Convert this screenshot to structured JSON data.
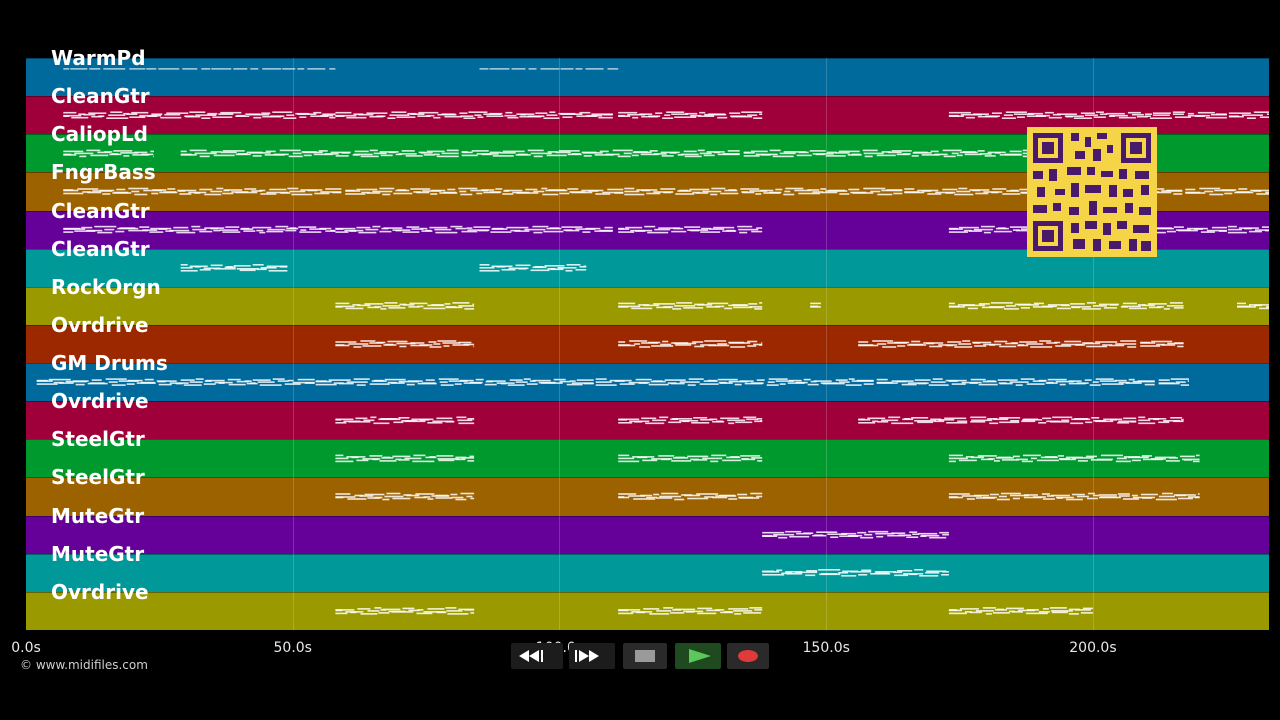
{
  "timeline": {
    "tracks": [
      {
        "name": "WarmPd",
        "color": "#006a9c"
      },
      {
        "name": "CleanGtr",
        "color": "#a0003a"
      },
      {
        "name": "CaliopLd",
        "color": "#00992e"
      },
      {
        "name": "FngrBass",
        "color": "#9c6200"
      },
      {
        "name": "CleanGtr",
        "color": "#650098"
      },
      {
        "name": "CleanGtr",
        "color": "#009898"
      },
      {
        "name": "RockOrgn",
        "color": "#9a9a00"
      },
      {
        "name": "Ovrdrive",
        "color": "#9c2800"
      },
      {
        "name": "GM Drums",
        "color": "#006a9c"
      },
      {
        "name": "Ovrdrive",
        "color": "#a0003a"
      },
      {
        "name": "SteelGtr",
        "color": "#00992e"
      },
      {
        "name": "SteelGtr",
        "color": "#9c6200"
      },
      {
        "name": "MuteGtr",
        "color": "#650098"
      },
      {
        "name": "MuteGtr",
        "color": "#009898"
      },
      {
        "name": "Ovrdrive",
        "color": "#9a9a00"
      }
    ],
    "axis": {
      "unit": "s",
      "ticks": [
        {
          "value": 0,
          "label": "0.0s"
        },
        {
          "value": 50,
          "label": "50.0s"
        },
        {
          "value": 100,
          "label": "100.0s"
        },
        {
          "value": 150,
          "label": "150.0s"
        },
        {
          "value": 200,
          "label": "200.0s"
        }
      ],
      "range": [
        0,
        233
      ]
    },
    "note_regions": [
      [
        [
          7,
          58
        ],
        [
          85,
          111
        ]
      ],
      [
        [
          7,
          58
        ],
        [
          58,
          110
        ],
        [
          111,
          138
        ],
        [
          173,
          233
        ]
      ],
      [
        [
          7,
          24
        ],
        [
          29,
          188
        ]
      ],
      [
        [
          7,
          233
        ]
      ],
      [
        [
          7,
          58
        ],
        [
          58,
          110
        ],
        [
          111,
          138
        ],
        [
          173,
          233
        ]
      ],
      [
        [
          29,
          49
        ],
        [
          85,
          105
        ]
      ],
      [
        [
          58,
          84
        ],
        [
          111,
          138
        ],
        [
          147,
          149
        ],
        [
          173,
          217
        ],
        [
          227,
          233
        ]
      ],
      [
        [
          58,
          84
        ],
        [
          111,
          138
        ],
        [
          156,
          217
        ]
      ],
      [
        [
          2,
          218
        ]
      ],
      [
        [
          58,
          84
        ],
        [
          111,
          138
        ],
        [
          156,
          217
        ]
      ],
      [
        [
          58,
          84
        ],
        [
          111,
          138
        ],
        [
          173,
          220
        ]
      ],
      [
        [
          58,
          84
        ],
        [
          111,
          138
        ],
        [
          173,
          220
        ]
      ],
      [
        [
          138,
          173
        ]
      ],
      [
        [
          138,
          173
        ]
      ],
      [
        [
          58,
          84
        ],
        [
          111,
          138
        ],
        [
          173,
          200
        ]
      ]
    ]
  },
  "footer": {
    "copyright": "© www.midifiles.com"
  },
  "transport": {
    "rewind_icon": "rewind-icon",
    "forward_icon": "fast-forward-icon",
    "stop_icon": "stop-icon",
    "play_icon": "play-icon",
    "record_icon": "record-icon",
    "play_color": "#5cc85c",
    "record_color": "#e03a3a"
  },
  "qr": {
    "icon": "qr-code-icon",
    "color": "#f5d547"
  }
}
